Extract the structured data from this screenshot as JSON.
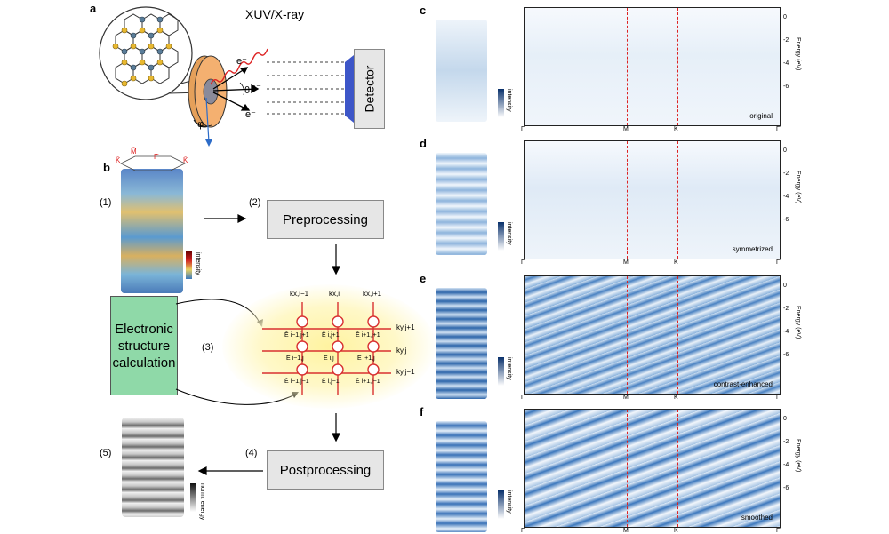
{
  "panel_a": {
    "letter": "a",
    "source_label": "XUV/X-ray",
    "electron_label": "e⁻",
    "theta": "θ",
    "phi": "φ",
    "detector_label": "Detector"
  },
  "panel_b": {
    "letter": "b",
    "steps": {
      "s1": "(1)",
      "s2": "(2)",
      "s3": "(3)",
      "s4": "(4)",
      "s5": "(5)"
    },
    "preprocessing": "Preprocessing",
    "postprocessing": "Postprocessing",
    "electronic_structure": "Electronic structure calculation",
    "intensity_label": "intensity",
    "norm_energy_label": "norm. energy",
    "bz_labels": {
      "k_left": "K̄",
      "m": "M̄",
      "gamma": "Γ̄",
      "k_right": "K̄"
    },
    "grid_top": [
      "kx,i−1",
      "kx,i",
      "kx,i+1"
    ],
    "grid_right": [
      "ky,j+1",
      "ky,j",
      "ky,j−1"
    ],
    "grid_nodes": [
      [
        "Ē i−1,j+1",
        "Ē i,j+1",
        "Ē i+1,j+1"
      ],
      [
        "Ē i−1,j",
        "Ē i,j",
        "Ē i+1,j"
      ],
      [
        "Ē i−1,j−1",
        "Ē i,j−1",
        "Ē i+1,j−1"
      ]
    ]
  },
  "right_panels": [
    {
      "letter": "c",
      "corner": "original"
    },
    {
      "letter": "d",
      "corner": "symmetrized"
    },
    {
      "letter": "e",
      "corner": "contrast-enhanced"
    },
    {
      "letter": "f",
      "corner": "smoothed"
    }
  ],
  "bands": {
    "x_ticks": [
      "Γ̄",
      "M̄",
      "K̄",
      "Γ̄"
    ],
    "y_ticks": [
      "0",
      "-2",
      "-4",
      "-6"
    ],
    "y_label": "Energy (eV)",
    "colorbar_label": "intensity"
  }
}
